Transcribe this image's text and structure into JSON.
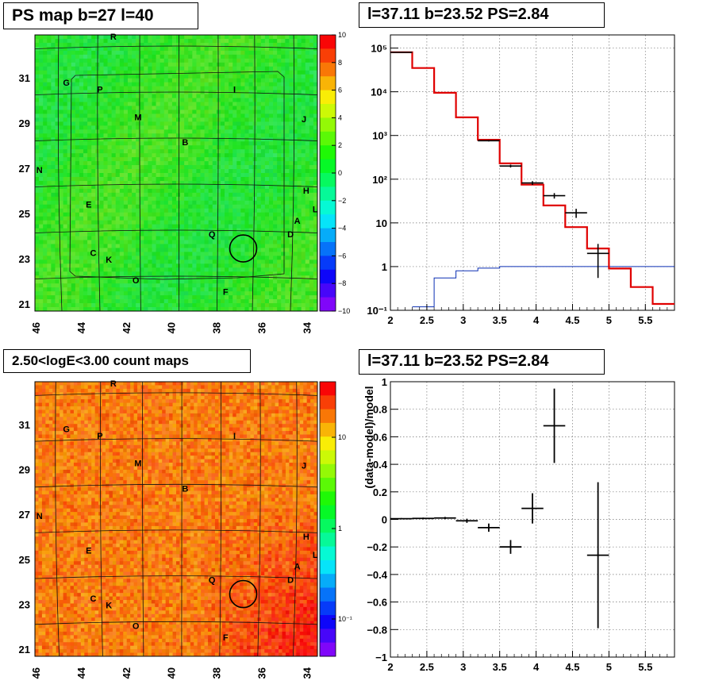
{
  "titles": {
    "ps_map": "PS map b=27 l=40",
    "spectrum": "l=37.11 b=23.52 PS=2.84",
    "count_map": "2.50<logE<3.00 count maps",
    "residual": "l=37.11 b=23.52 PS=2.84"
  },
  "maps": {
    "lon_ticks": [
      "46",
      "44",
      "42",
      "40",
      "38",
      "36",
      "34"
    ],
    "lat_ticks": [
      "31",
      "29",
      "27",
      "25",
      "23",
      "21"
    ],
    "labels": [
      {
        "t": "R",
        "lon": 42.9,
        "lat": 32.6
      },
      {
        "t": "G",
        "lon": 45.0,
        "lat": 30.6
      },
      {
        "t": "P",
        "lon": 43.5,
        "lat": 30.3
      },
      {
        "t": "I",
        "lon": 37.5,
        "lat": 30.3
      },
      {
        "t": "M",
        "lon": 41.8,
        "lat": 29.1
      },
      {
        "t": "J",
        "lon": 34.4,
        "lat": 29.0
      },
      {
        "t": "B",
        "lon": 39.7,
        "lat": 28.0
      },
      {
        "t": "N",
        "lon": 46.2,
        "lat": 26.8
      },
      {
        "t": "H",
        "lon": 34.3,
        "lat": 25.9
      },
      {
        "t": "E",
        "lon": 44.0,
        "lat": 25.3
      },
      {
        "t": "L",
        "lon": 33.9,
        "lat": 25.1
      },
      {
        "t": "A",
        "lon": 34.7,
        "lat": 24.6
      },
      {
        "t": "Q",
        "lon": 38.5,
        "lat": 24.0
      },
      {
        "t": "D",
        "lon": 35.0,
        "lat": 24.0
      },
      {
        "t": "C",
        "lon": 43.8,
        "lat": 23.2
      },
      {
        "t": "K",
        "lon": 43.1,
        "lat": 22.9
      },
      {
        "t": "O",
        "lon": 41.9,
        "lat": 22.0
      },
      {
        "t": "F",
        "lon": 37.9,
        "lat": 21.5
      }
    ],
    "circle": {
      "lon": 37.11,
      "lat": 23.52,
      "radius_deg": 0.6
    }
  },
  "ps_colorbar": {
    "min": -10,
    "max": 10,
    "ticks": [
      "10",
      "8",
      "6",
      "4",
      "2",
      "0",
      "−2",
      "−4",
      "−6",
      "−8",
      "−10"
    ]
  },
  "count_colorbar": {
    "scale": "log",
    "ticks": [
      "10",
      "1",
      "10⁻¹"
    ]
  },
  "chart_data": [
    {
      "type": "histogram",
      "panel": "spectrum",
      "xlim": [
        2,
        5.9
      ],
      "ylim": [
        0.1,
        200000
      ],
      "yscale": "log",
      "grid": true,
      "x_ticks": [
        "2",
        "2.5",
        "3",
        "3.5",
        "4",
        "4.5",
        "5",
        "5.5"
      ],
      "y_ticks": [
        "10⁻¹",
        "1",
        "10",
        "10²",
        "10³",
        "10⁴",
        "10⁵"
      ],
      "model_red": {
        "edges": [
          2.0,
          2.3,
          2.6,
          2.9,
          3.2,
          3.5,
          3.8,
          4.1,
          4.4,
          4.7,
          5.0,
          5.3,
          5.6,
          5.9
        ],
        "values": [
          80000,
          35000,
          9500,
          2600,
          800,
          230,
          75,
          25,
          8,
          2.6,
          0.9,
          0.34,
          0.14
        ]
      },
      "model_blue": {
        "edges": [
          2.3,
          2.6,
          2.9,
          3.2,
          3.5,
          5.9
        ],
        "values": [
          0.12,
          0.55,
          0.8,
          0.92,
          1.0
        ]
      },
      "data_points": [
        {
          "x": 2.15,
          "y": 80000,
          "xerr": 0.15,
          "ylo": 79000,
          "yhi": 81000
        },
        {
          "x": 3.35,
          "y": 760,
          "xerr": 0.15,
          "ylo": 730,
          "yhi": 790
        },
        {
          "x": 3.65,
          "y": 200,
          "xerr": 0.15,
          "ylo": 185,
          "yhi": 215
        },
        {
          "x": 3.95,
          "y": 82,
          "xerr": 0.15,
          "ylo": 74,
          "yhi": 90
        },
        {
          "x": 4.25,
          "y": 42,
          "xerr": 0.15,
          "ylo": 36,
          "yhi": 48
        },
        {
          "x": 4.55,
          "y": 17,
          "xerr": 0.15,
          "ylo": 13,
          "yhi": 21
        },
        {
          "x": 4.85,
          "y": 2,
          "xerr": 0.15,
          "ylo": 0.55,
          "yhi": 3.3
        }
      ]
    },
    {
      "type": "scatter",
      "panel": "residual",
      "ylabel": "(data-model)/model",
      "xlim": [
        2,
        5.9
      ],
      "ylim": [
        -1,
        1
      ],
      "grid": true,
      "x_ticks": [
        "2",
        "2.5",
        "3",
        "3.5",
        "4",
        "4.5",
        "5",
        "5.5"
      ],
      "y_ticks": [
        "−1",
        "−0.8",
        "−0.6",
        "−0.4",
        "−0.2",
        "0",
        "0.2",
        "0.4",
        "0.6",
        "0.8",
        "1"
      ],
      "points": [
        {
          "x": 2.15,
          "y": 0.005,
          "xerr": 0.15,
          "yerr": 0.005
        },
        {
          "x": 2.45,
          "y": 0.007,
          "xerr": 0.15,
          "yerr": 0.006
        },
        {
          "x": 2.75,
          "y": 0.01,
          "xerr": 0.15,
          "yerr": 0.008
        },
        {
          "x": 3.05,
          "y": -0.01,
          "xerr": 0.15,
          "yerr": 0.015
        },
        {
          "x": 3.35,
          "y": -0.06,
          "xerr": 0.15,
          "yerr": 0.03
        },
        {
          "x": 3.65,
          "y": -0.2,
          "xerr": 0.15,
          "yerr": 0.05
        },
        {
          "x": 3.95,
          "y": 0.08,
          "xerr": 0.15,
          "yerr": 0.11
        },
        {
          "x": 4.25,
          "y": 0.68,
          "xerr": 0.15,
          "yerr": 0.27
        },
        {
          "x": 4.85,
          "y": -0.26,
          "xerr": 0.15,
          "yerr": 0.53
        }
      ]
    }
  ]
}
